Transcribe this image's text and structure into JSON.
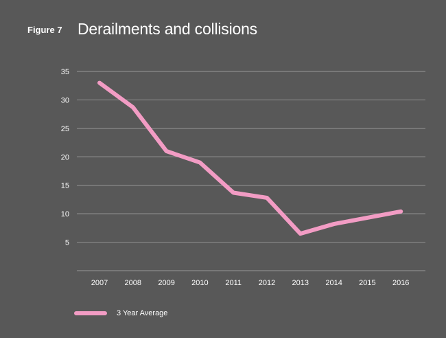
{
  "figure": {
    "label": "Figure 7",
    "title": "Derailments and collisions"
  },
  "colors": {
    "background": "#585858",
    "gridline": "#8a8a8a",
    "series": "#f29cc4",
    "text": "#ffffff"
  },
  "chart_data": {
    "type": "line",
    "title": "Derailments and collisions",
    "xlabel": "",
    "ylabel": "",
    "categories": [
      "2007",
      "2008",
      "2009",
      "2010",
      "2011",
      "2012",
      "2013",
      "2014",
      "2015",
      "2016"
    ],
    "yticks": [
      5,
      10,
      15,
      20,
      25,
      30,
      35
    ],
    "ylim": [
      0,
      35
    ],
    "grid": true,
    "legend_position": "bottom-left",
    "series": [
      {
        "name": "3 Year Average",
        "values": [
          33,
          28.7,
          21,
          19,
          13.7,
          12.8,
          6.5,
          8.2,
          9.3,
          10.4
        ]
      }
    ]
  }
}
